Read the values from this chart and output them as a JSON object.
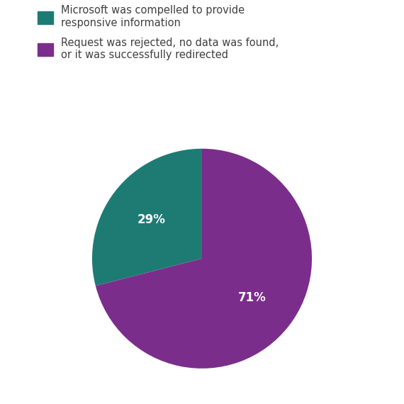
{
  "slices": [
    29,
    71
  ],
  "colors": [
    "#1e7b74",
    "#7b2d8b"
  ],
  "labels": [
    "29%",
    "71%"
  ],
  "legend_labels": [
    "Microsoft was compelled to provide\nresponsive information",
    "Request was rejected, no data was found,\nor it was successfully redirected"
  ],
  "text_color": "#ffffff",
  "label_fontsize": 12,
  "legend_fontsize": 10.5,
  "startangle": 90,
  "background_color": "#ffffff",
  "legend_text_color": "#404040"
}
